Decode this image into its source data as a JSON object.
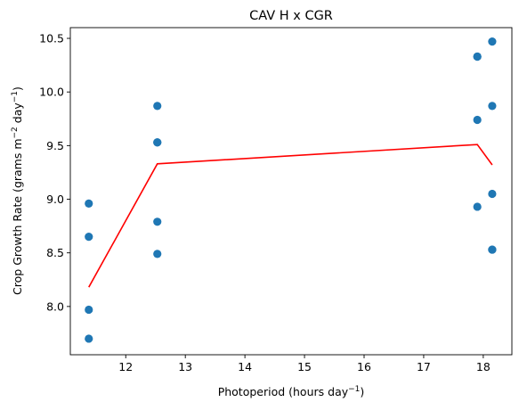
{
  "chart_data": {
    "type": "scatter",
    "title": "CAV H x CGR",
    "xlabel": {
      "main": "Photoperiod (hours day",
      "sup": "−1",
      "tail": ")"
    },
    "ylabel": {
      "main": "Crop Growth Rate (grams m",
      "sup1": "−2",
      "mid": " day",
      "sup2": "−1",
      "tail": ")"
    },
    "xlim": [
      11.07,
      18.48
    ],
    "ylim": [
      7.55,
      10.6
    ],
    "xticks": [
      12,
      13,
      14,
      15,
      16,
      17,
      18
    ],
    "xtick_labels": [
      "12",
      "13",
      "14",
      "15",
      "16",
      "17",
      "18"
    ],
    "yticks": [
      8.0,
      8.5,
      9.0,
      9.5,
      10.0,
      10.5
    ],
    "ytick_labels": [
      "8.0",
      "8.5",
      "9.0",
      "9.5",
      "10.0",
      "10.5"
    ],
    "grid": false,
    "points": {
      "x": [
        11.38,
        11.38,
        11.38,
        11.38,
        12.53,
        12.53,
        12.53,
        12.53,
        12.53,
        17.9,
        17.9,
        17.9,
        17.9,
        18.15,
        18.15,
        18.15,
        18.15,
        18.15
      ],
      "y": [
        8.96,
        8.65,
        7.97,
        7.7,
        9.87,
        9.53,
        9.53,
        8.79,
        8.49,
        10.33,
        10.33,
        9.74,
        8.93,
        10.47,
        9.87,
        9.05,
        8.53,
        8.53
      ]
    },
    "trend_line": {
      "x": [
        11.38,
        12.53,
        17.9,
        18.15
      ],
      "y": [
        8.18,
        9.33,
        9.51,
        9.32
      ]
    },
    "colors": {
      "points": "#1f77b4",
      "line": "#ff0000"
    }
  }
}
